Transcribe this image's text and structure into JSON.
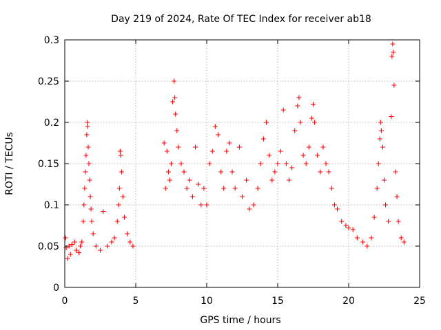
{
  "chart_data": {
    "type": "scatter",
    "title": "Day 219 of 2024, Rate Of TEC Index for receiver ab18",
    "xlabel": "GPS time / hours",
    "ylabel": "ROTI / TECUs",
    "xlim": [
      0,
      25
    ],
    "ylim": [
      0,
      0.3
    ],
    "xticks": [
      0,
      5,
      10,
      15,
      20,
      25
    ],
    "xtick_labels": [
      "0",
      "5",
      "10",
      "15",
      "20",
      "25"
    ],
    "yticks": [
      0,
      0.05,
      0.1,
      0.15,
      0.2,
      0.25,
      0.3
    ],
    "ytick_labels": [
      "0",
      "0.05",
      "0.1",
      "0.15",
      "0.2",
      "0.25",
      "0.3"
    ],
    "grid": true,
    "marker": "plus",
    "color": "#ff0000",
    "series": [
      {
        "name": "ROTI",
        "points": [
          [
            0.05,
            0.06
          ],
          [
            0.1,
            0.048
          ],
          [
            0.2,
            0.035
          ],
          [
            0.3,
            0.05
          ],
          [
            0.4,
            0.04
          ],
          [
            0.5,
            0.052
          ],
          [
            0.7,
            0.055
          ],
          [
            0.8,
            0.045
          ],
          [
            1.0,
            0.042
          ],
          [
            1.1,
            0.05
          ],
          [
            1.2,
            0.055
          ],
          [
            1.3,
            0.08
          ],
          [
            1.35,
            0.1
          ],
          [
            1.4,
            0.12
          ],
          [
            1.45,
            0.14
          ],
          [
            1.5,
            0.16
          ],
          [
            1.55,
            0.185
          ],
          [
            1.6,
            0.2
          ],
          [
            1.62,
            0.195
          ],
          [
            1.65,
            0.17
          ],
          [
            1.7,
            0.15
          ],
          [
            1.75,
            0.13
          ],
          [
            1.8,
            0.11
          ],
          [
            1.85,
            0.095
          ],
          [
            1.9,
            0.08
          ],
          [
            2.0,
            0.065
          ],
          [
            2.2,
            0.05
          ],
          [
            2.5,
            0.045
          ],
          [
            2.7,
            0.092
          ],
          [
            3.0,
            0.05
          ],
          [
            3.3,
            0.055
          ],
          [
            3.5,
            0.06
          ],
          [
            3.7,
            0.08
          ],
          [
            3.8,
            0.1
          ],
          [
            3.85,
            0.12
          ],
          [
            3.9,
            0.165
          ],
          [
            3.95,
            0.16
          ],
          [
            4.0,
            0.14
          ],
          [
            4.1,
            0.11
          ],
          [
            4.2,
            0.085
          ],
          [
            4.4,
            0.065
          ],
          [
            4.6,
            0.055
          ],
          [
            4.8,
            0.05
          ],
          [
            7.0,
            0.175
          ],
          [
            7.1,
            0.12
          ],
          [
            7.2,
            0.165
          ],
          [
            7.3,
            0.14
          ],
          [
            7.4,
            0.13
          ],
          [
            7.5,
            0.15
          ],
          [
            7.6,
            0.225
          ],
          [
            7.7,
            0.25
          ],
          [
            7.75,
            0.23
          ],
          [
            7.8,
            0.21
          ],
          [
            7.9,
            0.19
          ],
          [
            8.0,
            0.17
          ],
          [
            8.2,
            0.15
          ],
          [
            8.4,
            0.14
          ],
          [
            8.6,
            0.12
          ],
          [
            8.8,
            0.13
          ],
          [
            9.0,
            0.11
          ],
          [
            9.2,
            0.17
          ],
          [
            9.4,
            0.125
          ],
          [
            9.6,
            0.1
          ],
          [
            9.8,
            0.12
          ],
          [
            10.0,
            0.1
          ],
          [
            10.2,
            0.15
          ],
          [
            10.4,
            0.165
          ],
          [
            10.6,
            0.195
          ],
          [
            10.8,
            0.185
          ],
          [
            11.0,
            0.14
          ],
          [
            11.2,
            0.12
          ],
          [
            11.4,
            0.165
          ],
          [
            11.6,
            0.175
          ],
          [
            11.8,
            0.14
          ],
          [
            12.0,
            0.12
          ],
          [
            12.3,
            0.17
          ],
          [
            12.5,
            0.11
          ],
          [
            12.8,
            0.13
          ],
          [
            13.0,
            0.095
          ],
          [
            13.3,
            0.1
          ],
          [
            13.6,
            0.12
          ],
          [
            13.8,
            0.15
          ],
          [
            14.0,
            0.18
          ],
          [
            14.2,
            0.2
          ],
          [
            14.4,
            0.16
          ],
          [
            14.6,
            0.13
          ],
          [
            14.8,
            0.14
          ],
          [
            15.0,
            0.15
          ],
          [
            15.2,
            0.165
          ],
          [
            15.4,
            0.215
          ],
          [
            15.6,
            0.15
          ],
          [
            15.8,
            0.13
          ],
          [
            16.0,
            0.145
          ],
          [
            16.2,
            0.19
          ],
          [
            16.4,
            0.22
          ],
          [
            16.5,
            0.23
          ],
          [
            16.6,
            0.2
          ],
          [
            16.8,
            0.16
          ],
          [
            17.0,
            0.15
          ],
          [
            17.2,
            0.17
          ],
          [
            17.4,
            0.205
          ],
          [
            17.5,
            0.222
          ],
          [
            17.6,
            0.2
          ],
          [
            17.8,
            0.16
          ],
          [
            18.0,
            0.14
          ],
          [
            18.2,
            0.17
          ],
          [
            18.4,
            0.15
          ],
          [
            18.6,
            0.14
          ],
          [
            18.8,
            0.12
          ],
          [
            19.0,
            0.1
          ],
          [
            19.2,
            0.095
          ],
          [
            19.5,
            0.08
          ],
          [
            19.8,
            0.075
          ],
          [
            20.0,
            0.072
          ],
          [
            20.3,
            0.07
          ],
          [
            20.6,
            0.06
          ],
          [
            21.0,
            0.055
          ],
          [
            21.3,
            0.05
          ],
          [
            21.6,
            0.06
          ],
          [
            21.8,
            0.085
          ],
          [
            22.0,
            0.12
          ],
          [
            22.1,
            0.15
          ],
          [
            22.2,
            0.18
          ],
          [
            22.25,
            0.2
          ],
          [
            22.3,
            0.19
          ],
          [
            22.4,
            0.17
          ],
          [
            22.5,
            0.13
          ],
          [
            22.6,
            0.1
          ],
          [
            22.8,
            0.08
          ],
          [
            23.0,
            0.207
          ],
          [
            23.05,
            0.28
          ],
          [
            23.1,
            0.295
          ],
          [
            23.15,
            0.285
          ],
          [
            23.2,
            0.245
          ],
          [
            23.3,
            0.14
          ],
          [
            23.4,
            0.11
          ],
          [
            23.5,
            0.08
          ],
          [
            23.7,
            0.06
          ],
          [
            23.9,
            0.055
          ]
        ]
      }
    ]
  }
}
